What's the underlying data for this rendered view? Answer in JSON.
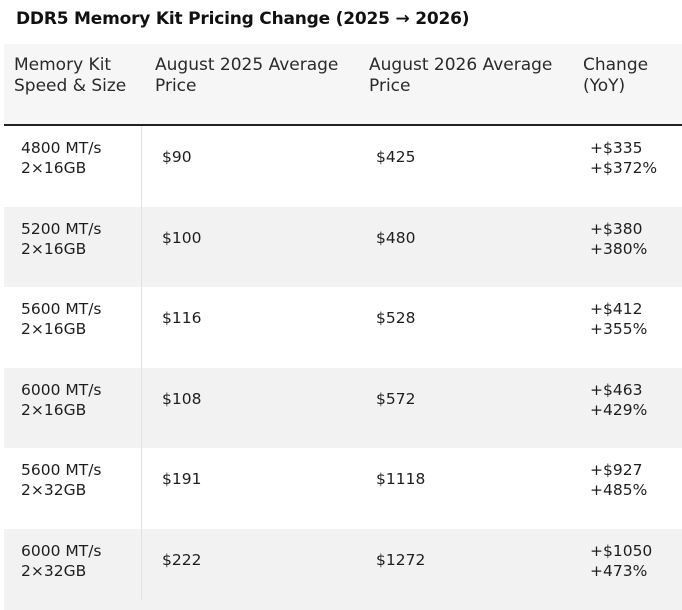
{
  "title": "DDR5 Memory Kit Pricing Change (2025 → 2026)",
  "headers": {
    "kit": "Memory Kit\nSpeed & Size",
    "price_2025": "August 2025 Average\nPrice",
    "price_2026": "August 2026 Average\nPrice",
    "change": "Change\n(YoY)"
  },
  "rows": [
    {
      "speed": "4800 MT/s",
      "size": "2×16GB",
      "price_2025": "$90",
      "price_2026": "$425",
      "change_abs": "+$335",
      "change_pct": "+$372%"
    },
    {
      "speed": "5200 MT/s",
      "size": "2×16GB",
      "price_2025": "$100",
      "price_2026": "$480",
      "change_abs": "+$380",
      "change_pct": "+380%"
    },
    {
      "speed": "5600 MT/s",
      "size": "2×16GB",
      "price_2025": "$116",
      "price_2026": "$528",
      "change_abs": "+$412",
      "change_pct": "+355%"
    },
    {
      "speed": "6000 MT/s",
      "size": "2×16GB",
      "price_2025": "$108",
      "price_2026": "$572",
      "change_abs": "+$463",
      "change_pct": "+429%"
    },
    {
      "speed": "5600 MT/s",
      "size": "2×32GB",
      "price_2025": "$191",
      "price_2026": "$1118",
      "change_abs": "+$927",
      "change_pct": "+485%"
    },
    {
      "speed": "6000 MT/s",
      "size": "2×32GB",
      "price_2025": "$222",
      "price_2026": "$1272",
      "change_abs": "+$1050",
      "change_pct": "+473%"
    }
  ]
}
